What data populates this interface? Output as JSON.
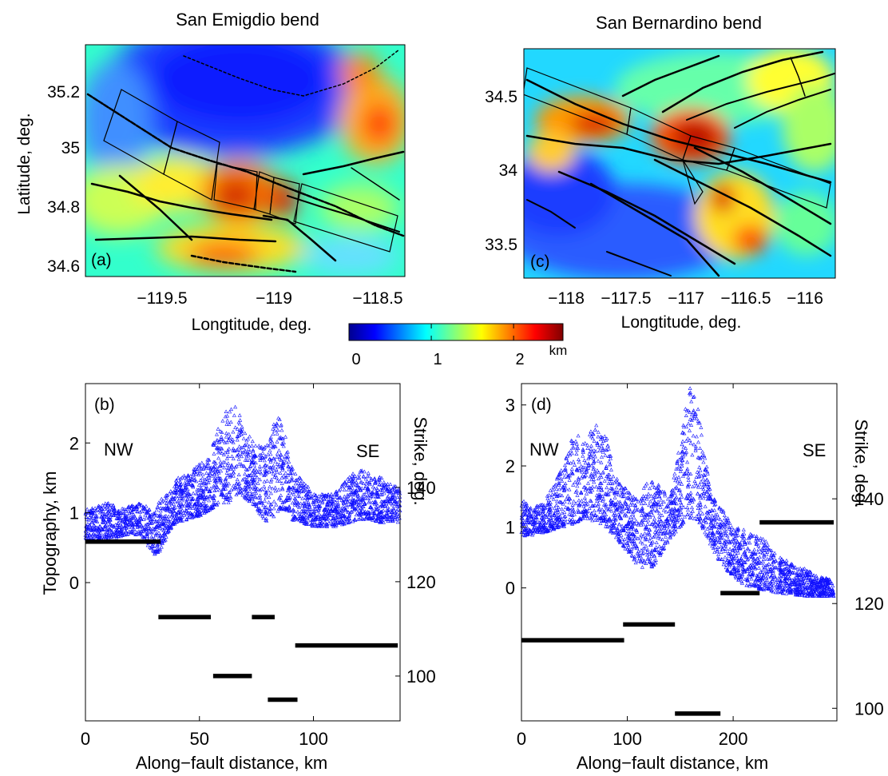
{
  "colors": {
    "marker": "#1010ff",
    "strike": "#000000",
    "colormap": [
      "#00008f",
      "#0000ff",
      "#0080ff",
      "#00ffff",
      "#80ff80",
      "#ffff00",
      "#ff8000",
      "#ff0000",
      "#800000"
    ]
  },
  "colorbar": {
    "ticks": [
      "0",
      "1",
      "2"
    ],
    "unit": "km",
    "range": [
      0,
      2.6
    ]
  },
  "chart_data": [
    {
      "type": "heatmap",
      "panel": "(a)",
      "title": "San Emigdio bend",
      "xlabel": "Longtitude, deg.",
      "ylabel": "Latitude, deg.",
      "xticks": [
        "−119.5",
        "−119",
        "−118.5"
      ],
      "yticks": [
        "35.2",
        "35",
        "34.8",
        "34.6"
      ],
      "xlim": [
        -119.78,
        -118.44
      ],
      "ylim": [
        34.56,
        35.33
      ]
    },
    {
      "type": "heatmap",
      "panel": "(c)",
      "title": "San Bernardino bend",
      "xlabel": "Longtitude, deg.",
      "xticks": [
        "−118",
        "−117.5",
        "−117",
        "−116.5",
        "−116"
      ],
      "yticks": [
        "34.5",
        "34",
        "33.5"
      ],
      "xlim": [
        -118.3,
        -115.8
      ],
      "ylim": [
        33.33,
        34.72
      ]
    },
    {
      "type": "scatter",
      "panel": "(b)",
      "xlabel": "Along−fault distance, km",
      "ylabel": "Topography, km",
      "y2label": "Strike, deg.",
      "annotations": [
        "NW",
        "SE"
      ],
      "xticks": [
        "0",
        "50",
        "100"
      ],
      "yticks": [
        "0",
        "1",
        "2"
      ],
      "y2ticks": [
        "100",
        "120",
        "140"
      ],
      "xlim": [
        0,
        138
      ],
      "ylim": [
        -1.98,
        2.85
      ],
      "y2lim": [
        90.5,
        162
      ],
      "topography": {
        "x": [
          0,
          5,
          10,
          15,
          20,
          25,
          30,
          33,
          37,
          40,
          45,
          50,
          55,
          58,
          62,
          65,
          68,
          70,
          73,
          75,
          78,
          80,
          83,
          85,
          88,
          90,
          95,
          100,
          105,
          110,
          115,
          120,
          125,
          130,
          135,
          138
        ],
        "y_min": [
          0.6,
          0.6,
          0.6,
          0.65,
          0.7,
          0.65,
          0.4,
          0.45,
          0.75,
          0.85,
          0.9,
          0.95,
          1.05,
          1.1,
          1.1,
          1.2,
          1.3,
          1.2,
          1.1,
          1.05,
          0.9,
          0.85,
          0.95,
          1.0,
          1.05,
          0.9,
          0.85,
          0.8,
          0.8,
          0.8,
          0.85,
          0.9,
          0.9,
          0.85,
          0.85,
          0.85
        ],
        "y_max": [
          1.05,
          1.1,
          1.15,
          1.05,
          1.1,
          1.15,
          1.0,
          1.2,
          1.3,
          1.5,
          1.55,
          1.7,
          1.95,
          2.2,
          2.5,
          2.6,
          2.4,
          2.2,
          2.05,
          1.95,
          2.0,
          2.05,
          2.3,
          2.4,
          2.1,
          1.7,
          1.45,
          1.3,
          1.25,
          1.3,
          1.5,
          1.65,
          1.55,
          1.5,
          1.4,
          1.35
        ]
      },
      "strike_segments": [
        {
          "x0": 0,
          "x1": 33,
          "strike": 128.5
        },
        {
          "x0": 32,
          "x1": 55,
          "strike": 112.5
        },
        {
          "x0": 56,
          "x1": 73,
          "strike": 100
        },
        {
          "x0": 73,
          "x1": 83,
          "strike": 112.5
        },
        {
          "x0": 80,
          "x1": 93,
          "strike": 95
        },
        {
          "x0": 92,
          "x1": 137,
          "strike": 106.5
        }
      ]
    },
    {
      "type": "scatter",
      "panel": "(d)",
      "xlabel": "Along−fault distance, km",
      "y2label": "Strike, deg.",
      "annotations": [
        "NW",
        "SE"
      ],
      "xticks": [
        "0",
        "100",
        "200"
      ],
      "yticks": [
        "0",
        "1",
        "2",
        "3"
      ],
      "y2ticks": [
        "100",
        "120",
        "140"
      ],
      "xlim": [
        0,
        298
      ],
      "ylim": [
        -2.18,
        3.35
      ],
      "y2lim": [
        97.6,
        162
      ],
      "topography": {
        "x": [
          0,
          10,
          20,
          30,
          40,
          50,
          60,
          70,
          80,
          90,
          100,
          110,
          120,
          125,
          130,
          140,
          150,
          155,
          160,
          165,
          170,
          175,
          180,
          190,
          200,
          210,
          220,
          230,
          240,
          250,
          260,
          270,
          280,
          290,
          295
        ],
        "y_min": [
          0.85,
          0.85,
          0.9,
          0.95,
          1.0,
          1.05,
          1.1,
          1.1,
          1.0,
          0.8,
          0.6,
          0.35,
          0.3,
          0.35,
          0.5,
          0.8,
          1.0,
          1.05,
          1.15,
          1.1,
          1.0,
          0.85,
          0.65,
          0.35,
          0.2,
          0.05,
          0.0,
          -0.05,
          -0.08,
          -0.1,
          -0.12,
          -0.14,
          -0.14,
          -0.14,
          -0.14
        ],
        "y_max": [
          1.45,
          1.3,
          1.4,
          1.7,
          2.0,
          2.6,
          2.4,
          2.7,
          2.5,
          1.8,
          1.6,
          1.5,
          1.75,
          1.95,
          1.7,
          1.5,
          2.4,
          2.95,
          3.35,
          3.15,
          2.6,
          2.0,
          1.5,
          1.3,
          1.0,
          0.95,
          0.9,
          0.8,
          0.55,
          0.45,
          0.35,
          0.3,
          0.2,
          0.15,
          0.1
        ]
      },
      "strike_segments": [
        {
          "x0": 0,
          "x1": 97,
          "strike": 113
        },
        {
          "x0": 96,
          "x1": 145,
          "strike": 116
        },
        {
          "x0": 145,
          "x1": 188,
          "strike": 99
        },
        {
          "x0": 188,
          "x1": 225,
          "strike": 122
        },
        {
          "x0": 225,
          "x1": 295,
          "strike": 135.5
        }
      ]
    }
  ]
}
